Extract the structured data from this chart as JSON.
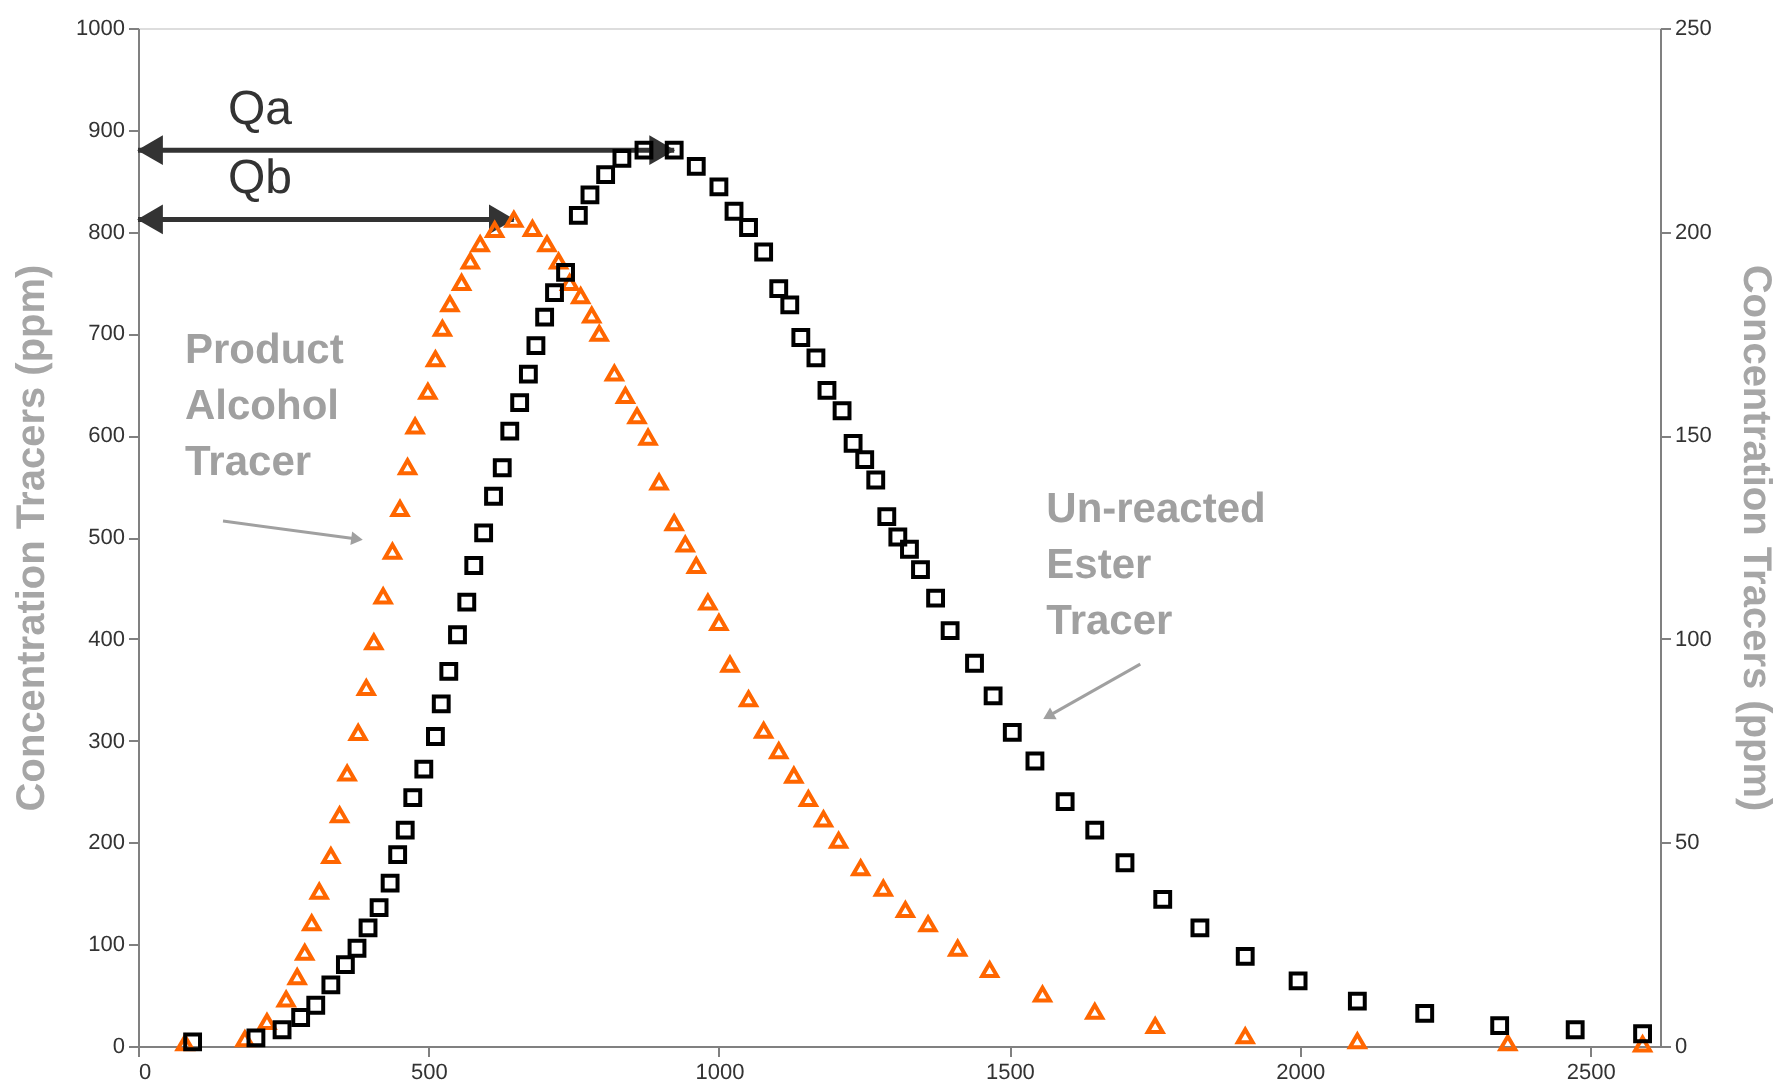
{
  "chart_data": {
    "type": "scatter",
    "ylabel": "Concentration Tracers (ppm)",
    "y2label": "Concentration Tracers (ppm)",
    "xlim": [
      0,
      2620
    ],
    "xticks": [
      0,
      500,
      1000,
      1500,
      2000,
      2500
    ],
    "ylim": [
      0,
      1000
    ],
    "yticks": [
      0,
      100,
      200,
      300,
      400,
      500,
      600,
      700,
      800,
      900,
      1000
    ],
    "y2lim": [
      0,
      250
    ],
    "y2ticks": [
      0,
      50,
      100,
      150,
      200,
      250
    ],
    "grid": false,
    "series": [
      {
        "color": "#ff6600",
        "marker": "triangle",
        "x": [
          81,
          184,
          222,
          255,
          274,
          287,
          299,
          312,
          332,
          347,
          360,
          379,
          393,
          406,
          422,
          438,
          451,
          464,
          477,
          499,
          512,
          524,
          537,
          557,
          572,
          589,
          614,
          647,
          679,
          704,
          724,
          743,
          762,
          781,
          794,
          820,
          839,
          859,
          878,
          897,
          923,
          942,
          961,
          981,
          1000,
          1019,
          1051,
          1077,
          1103,
          1129,
          1154,
          1180,
          1206,
          1244,
          1283,
          1321,
          1360,
          1411,
          1466,
          1557,
          1647,
          1751,
          1906,
          2099,
          2358,
          2590
        ],
        "values": [
          3,
          7,
          24,
          46,
          68,
          92,
          121,
          152,
          187,
          227,
          268,
          308,
          352,
          397,
          442,
          486,
          528,
          569,
          609,
          643,
          675,
          705,
          729,
          750,
          771,
          788,
          802,
          812,
          803,
          788,
          771,
          750,
          737,
          718,
          700,
          661,
          639,
          619,
          598,
          554,
          514,
          493,
          472,
          436,
          416,
          375,
          341,
          310,
          290,
          266,
          243,
          223,
          202,
          175,
          155,
          134,
          120,
          96,
          75,
          51,
          34,
          20,
          10,
          5,
          3,
          2
        ]
      },
      {
        "color": "#000000",
        "marker": "square",
        "axis": "y2",
        "x": [
          94,
          203,
          248,
          280,
          306,
          332,
          357,
          377,
          396,
          415,
          434,
          447,
          460,
          473,
          492,
          512,
          522,
          535,
          550,
          566,
          578,
          595,
          612,
          627,
          640,
          657,
          672,
          685,
          700,
          717,
          736,
          758,
          778,
          805,
          833,
          871,
          923,
          961,
          1000,
          1026,
          1051,
          1077,
          1103,
          1122,
          1141,
          1167,
          1186,
          1212,
          1231,
          1251,
          1270,
          1289,
          1308,
          1328,
          1347,
          1373,
          1398,
          1440,
          1472,
          1505,
          1544,
          1596,
          1647,
          1699,
          1764,
          1828,
          1906,
          1997,
          2099,
          2215,
          2344,
          2474,
          2590
        ],
        "values": [
          1,
          2,
          4,
          7,
          10,
          15,
          20,
          24,
          29,
          34,
          40,
          47,
          53,
          61,
          68,
          76,
          84,
          92,
          101,
          109,
          118,
          126,
          135,
          142,
          151,
          158,
          165,
          172,
          179,
          185,
          190,
          204,
          209,
          214,
          218,
          220,
          220,
          216,
          211,
          205,
          201,
          195,
          186,
          182,
          174,
          169,
          161,
          156,
          148,
          144,
          139,
          130,
          125,
          122,
          117,
          110,
          102,
          94,
          86,
          77,
          70,
          60,
          53,
          45,
          36,
          29,
          22,
          16,
          11,
          8,
          5,
          4,
          3
        ]
      }
    ],
    "annotations": [
      "Qa",
      "Qb",
      {
        "text": "Product Alcohol Tracer",
        "x": 377,
        "y": 498
      },
      {
        "text": "Un-reacted Ester Tracer",
        "x": 1567,
        "y": 324
      }
    ]
  }
}
